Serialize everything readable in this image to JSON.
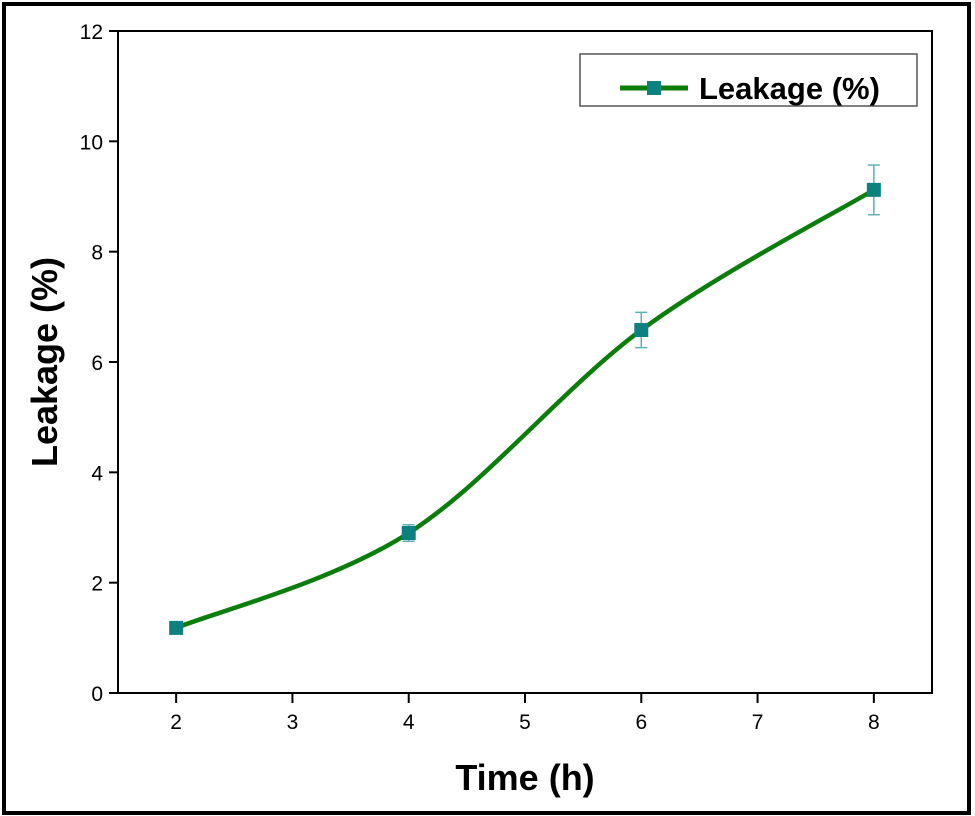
{
  "chart_data": {
    "type": "line",
    "title": "",
    "xlabel": "Time (h)",
    "ylabel": "Leakage (%)",
    "xlim": [
      1.5,
      8.5
    ],
    "ylim": [
      0,
      12
    ],
    "xticks": [
      2,
      3,
      4,
      5,
      6,
      7,
      8
    ],
    "yticks": [
      0,
      2,
      4,
      6,
      8,
      10,
      12
    ],
    "grid": false,
    "legend_position": "upper right",
    "series": [
      {
        "name": "Leakage (%)",
        "x": [
          2,
          4,
          6,
          8
        ],
        "values": [
          1.18,
          2.9,
          6.58,
          9.12
        ],
        "error": [
          0.05,
          0.15,
          0.32,
          0.45
        ],
        "line_color": "#0a7d0a",
        "marker_color": "#0d8080",
        "errorbar_color": "#5fb0b0",
        "marker": "square",
        "smooth": true
      }
    ]
  },
  "legend": {
    "label": "Leakage (%)"
  },
  "axes": {
    "x_title": "Time (h)",
    "y_title": "Leakage (%)"
  }
}
